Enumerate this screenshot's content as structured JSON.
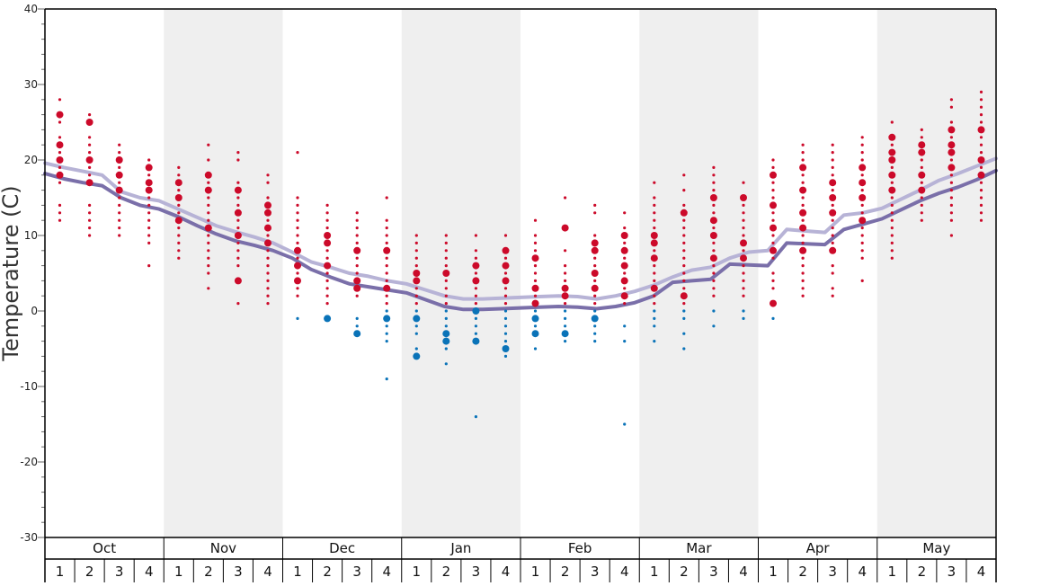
{
  "chart_data": {
    "type": "scatter",
    "ylabel": "Temperature (C)",
    "ylim": [
      -30,
      40
    ],
    "y_ticks": [
      -30,
      -20,
      -10,
      0,
      10,
      20,
      30,
      40
    ],
    "months": [
      "Oct",
      "Nov",
      "Dec",
      "Jan",
      "Feb",
      "Mar",
      "Apr",
      "May"
    ],
    "week_labels": [
      "1",
      "2",
      "3",
      "4"
    ],
    "colors": {
      "warm_dot": "#cc0a2a",
      "cold_dot": "#0a73b8",
      "upper_line": "#b7b3d6",
      "lower_line": "#7a6fa9",
      "band": "#efefef",
      "axis": "#000000"
    },
    "series": [
      {
        "values": [
          19.6,
          19.0,
          18.5,
          18.0,
          15.8,
          15.0,
          14.6,
          13.5,
          12.4,
          11.3,
          10.5,
          9.8,
          9.0,
          7.8,
          6.5,
          5.8,
          5.0,
          4.6,
          4.0,
          3.6,
          2.8,
          2.0,
          1.6,
          1.6,
          1.7,
          1.8,
          1.9,
          2.0,
          1.9,
          1.6,
          2.0,
          2.6,
          3.4,
          4.5,
          5.4,
          5.8,
          7.0,
          7.8,
          8.0,
          10.8,
          10.6,
          10.4,
          12.7,
          13.0,
          13.6,
          14.8,
          16.0,
          17.3,
          18.2,
          19.2,
          20.2
        ]
      },
      {
        "values": [
          18.2,
          17.5,
          17.0,
          16.6,
          15.0,
          14.0,
          13.5,
          12.5,
          11.3,
          10.2,
          9.3,
          8.7,
          8.0,
          7.0,
          5.5,
          4.5,
          3.6,
          3.2,
          2.8,
          2.4,
          1.5,
          0.6,
          0.2,
          0.2,
          0.3,
          0.4,
          0.5,
          0.6,
          0.5,
          0.3,
          0.6,
          1.1,
          2.0,
          3.8,
          4.0,
          4.2,
          6.2,
          6.1,
          6.0,
          9.0,
          8.9,
          8.8,
          10.8,
          11.5,
          12.2,
          13.4,
          14.6,
          15.6,
          16.4,
          17.4,
          18.6
        ]
      }
    ],
    "points": [
      {
        "w": 1,
        "v": [
          28,
          26,
          25,
          23,
          22,
          21,
          20,
          19,
          18,
          17,
          14,
          13,
          12
        ],
        "big": [
          26,
          22,
          20,
          18
        ]
      },
      {
        "w": 2,
        "v": [
          26,
          25,
          23,
          22,
          21,
          20,
          19,
          18,
          17,
          14,
          13,
          12,
          11,
          10
        ],
        "big": [
          25,
          20,
          17
        ]
      },
      {
        "w": 3,
        "v": [
          22,
          21,
          20,
          19,
          18,
          17,
          16,
          15,
          14,
          13,
          12,
          11,
          10
        ],
        "big": [
          20,
          18,
          16
        ]
      },
      {
        "w": 4,
        "v": [
          20,
          19,
          18,
          17,
          16,
          15,
          14,
          13,
          12,
          11,
          10,
          9,
          6
        ],
        "big": [
          19,
          17,
          16
        ]
      },
      {
        "w": 5,
        "v": [
          19,
          18,
          17,
          16,
          15,
          14,
          13,
          12,
          11,
          10,
          9,
          8,
          7
        ],
        "big": [
          17,
          15,
          12
        ]
      },
      {
        "w": 6,
        "v": [
          22,
          20,
          18,
          17,
          16,
          15,
          14,
          13,
          12,
          11,
          10,
          9,
          8,
          7,
          6,
          5,
          3
        ],
        "big": [
          18,
          16,
          11
        ]
      },
      {
        "w": 7,
        "v": [
          21,
          20,
          17,
          16,
          15,
          14,
          13,
          12,
          11,
          10,
          9,
          8,
          7,
          6,
          4,
          1
        ],
        "big": [
          16,
          13,
          10,
          4
        ]
      },
      {
        "w": 8,
        "v": [
          18,
          17,
          15,
          14,
          13,
          12,
          11,
          10,
          9,
          8,
          7,
          6,
          5,
          4,
          3,
          2,
          1
        ],
        "big": [
          14,
          13,
          11,
          9
        ]
      },
      {
        "w": 9,
        "v": [
          21,
          15,
          14,
          13,
          12,
          11,
          10,
          9,
          8,
          7,
          6,
          5,
          4,
          3,
          2,
          -1
        ],
        "big": [
          8,
          6,
          4
        ]
      },
      {
        "w": 10,
        "v": [
          14,
          13,
          12,
          11,
          10,
          9,
          8,
          7,
          6,
          5,
          4,
          3,
          2,
          1,
          -1
        ],
        "big": [
          10,
          9,
          6,
          -1
        ]
      },
      {
        "w": 11,
        "v": [
          13,
          12,
          11,
          10,
          9,
          8,
          7,
          6,
          5,
          4,
          3,
          2,
          -1,
          -2,
          -3
        ],
        "big": [
          8,
          4,
          3,
          -3
        ]
      },
      {
        "w": 12,
        "v": [
          15,
          12,
          11,
          10,
          9,
          8,
          7,
          6,
          5,
          4,
          3,
          2,
          1,
          0,
          -1,
          -2,
          -3,
          -4,
          -9
        ],
        "big": [
          8,
          3,
          -1
        ]
      },
      {
        "w": 13,
        "v": [
          10,
          9,
          8,
          7,
          6,
          5,
          4,
          3,
          2,
          1,
          0,
          -1,
          -2,
          -3,
          -5,
          -6
        ],
        "big": [
          5,
          4,
          -1,
          -6
        ]
      },
      {
        "w": 14,
        "v": [
          10,
          9,
          8,
          7,
          6,
          5,
          4,
          3,
          2,
          1,
          0,
          -1,
          -2,
          -3,
          -4,
          -5,
          -7
        ],
        "big": [
          5,
          -4,
          -3
        ]
      },
      {
        "w": 15,
        "v": [
          10,
          8,
          7,
          6,
          5,
          4,
          3,
          2,
          1,
          0,
          -1,
          -2,
          -3,
          -4,
          -14
        ],
        "big": [
          6,
          4,
          0,
          -4
        ]
      },
      {
        "w": 16,
        "v": [
          10,
          8,
          7,
          6,
          5,
          4,
          3,
          2,
          1,
          0,
          -1,
          -2,
          -3,
          -4,
          -5,
          -6
        ],
        "big": [
          8,
          6,
          4,
          -5
        ]
      },
      {
        "w": 17,
        "v": [
          12,
          10,
          9,
          8,
          7,
          6,
          5,
          4,
          3,
          2,
          1,
          0,
          -1,
          -2,
          -3,
          -5
        ],
        "big": [
          7,
          3,
          1,
          -1,
          -3
        ]
      },
      {
        "w": 18,
        "v": [
          15,
          11,
          8,
          6,
          5,
          4,
          3,
          2,
          1,
          0,
          -1,
          -2,
          -3,
          -4
        ],
        "big": [
          11,
          3,
          2,
          -3
        ]
      },
      {
        "w": 19,
        "v": [
          14,
          13,
          10,
          9,
          8,
          7,
          6,
          5,
          4,
          3,
          2,
          1,
          0,
          -1,
          -2,
          -3,
          -4
        ],
        "big": [
          9,
          8,
          5,
          3,
          -1
        ]
      },
      {
        "w": 20,
        "v": [
          13,
          11,
          10,
          9,
          8,
          7,
          6,
          5,
          4,
          3,
          2,
          1,
          -2,
          -4,
          -15
        ],
        "big": [
          10,
          8,
          6,
          4,
          2
        ]
      },
      {
        "w": 21,
        "v": [
          17,
          15,
          14,
          13,
          12,
          11,
          10,
          9,
          8,
          7,
          6,
          5,
          4,
          3,
          2,
          1,
          0,
          -1,
          -2,
          -4
        ],
        "big": [
          10,
          9,
          7,
          3
        ]
      },
      {
        "w": 22,
        "v": [
          18,
          16,
          14,
          13,
          12,
          11,
          10,
          9,
          8,
          7,
          6,
          5,
          4,
          3,
          2,
          1,
          0,
          -1,
          -3,
          -5
        ],
        "big": [
          13,
          2
        ]
      },
      {
        "w": 23,
        "v": [
          19,
          18,
          17,
          16,
          15,
          14,
          13,
          12,
          11,
          10,
          9,
          8,
          7,
          6,
          5,
          4,
          3,
          2,
          0,
          -2
        ],
        "big": [
          15,
          12,
          10,
          7
        ]
      },
      {
        "w": 24,
        "v": [
          17,
          15,
          14,
          13,
          12,
          11,
          10,
          9,
          8,
          7,
          6,
          5,
          4,
          3,
          2,
          0,
          -1
        ],
        "big": [
          15,
          9,
          7
        ]
      },
      {
        "w": 25,
        "v": [
          20,
          19,
          18,
          17,
          16,
          15,
          14,
          13,
          12,
          11,
          10,
          9,
          8,
          7,
          5,
          4,
          3,
          1,
          -1
        ],
        "big": [
          18,
          14,
          11,
          8,
          1
        ]
      },
      {
        "w": 26,
        "v": [
          22,
          21,
          20,
          19,
          18,
          17,
          16,
          15,
          14,
          13,
          12,
          11,
          10,
          9,
          8,
          7,
          6,
          5,
          4,
          3,
          2
        ],
        "big": [
          19,
          16,
          13,
          11,
          8
        ]
      },
      {
        "w": 27,
        "v": [
          22,
          21,
          20,
          19,
          18,
          17,
          16,
          15,
          14,
          13,
          12,
          11,
          10,
          9,
          8,
          6,
          5,
          3,
          2
        ],
        "big": [
          17,
          15,
          13,
          8
        ]
      },
      {
        "w": 28,
        "v": [
          23,
          22,
          21,
          20,
          19,
          18,
          17,
          16,
          15,
          14,
          13,
          12,
          11,
          10,
          9,
          8,
          7,
          4
        ],
        "big": [
          19,
          17,
          15,
          12
        ]
      },
      {
        "w": 29,
        "v": [
          25,
          23,
          22,
          21,
          20,
          19,
          18,
          17,
          16,
          15,
          14,
          13,
          12,
          11,
          10,
          9,
          8,
          7
        ],
        "big": [
          23,
          21,
          20,
          18,
          16
        ]
      },
      {
        "w": 30,
        "v": [
          24,
          23,
          22,
          21,
          20,
          19,
          18,
          17,
          16,
          15,
          14,
          13,
          12
        ],
        "big": [
          22,
          21,
          18,
          16
        ]
      },
      {
        "w": 31,
        "v": [
          28,
          27,
          25,
          24,
          23,
          22,
          21,
          20,
          19,
          18,
          17,
          16,
          15,
          14,
          13,
          12,
          10
        ],
        "big": [
          24,
          22,
          21,
          19
        ]
      },
      {
        "w": 32,
        "v": [
          29,
          28,
          27,
          26,
          25,
          24,
          23,
          22,
          21,
          20,
          19,
          18,
          17,
          16,
          15,
          14,
          13,
          12
        ],
        "big": [
          24,
          20,
          18
        ]
      }
    ]
  }
}
